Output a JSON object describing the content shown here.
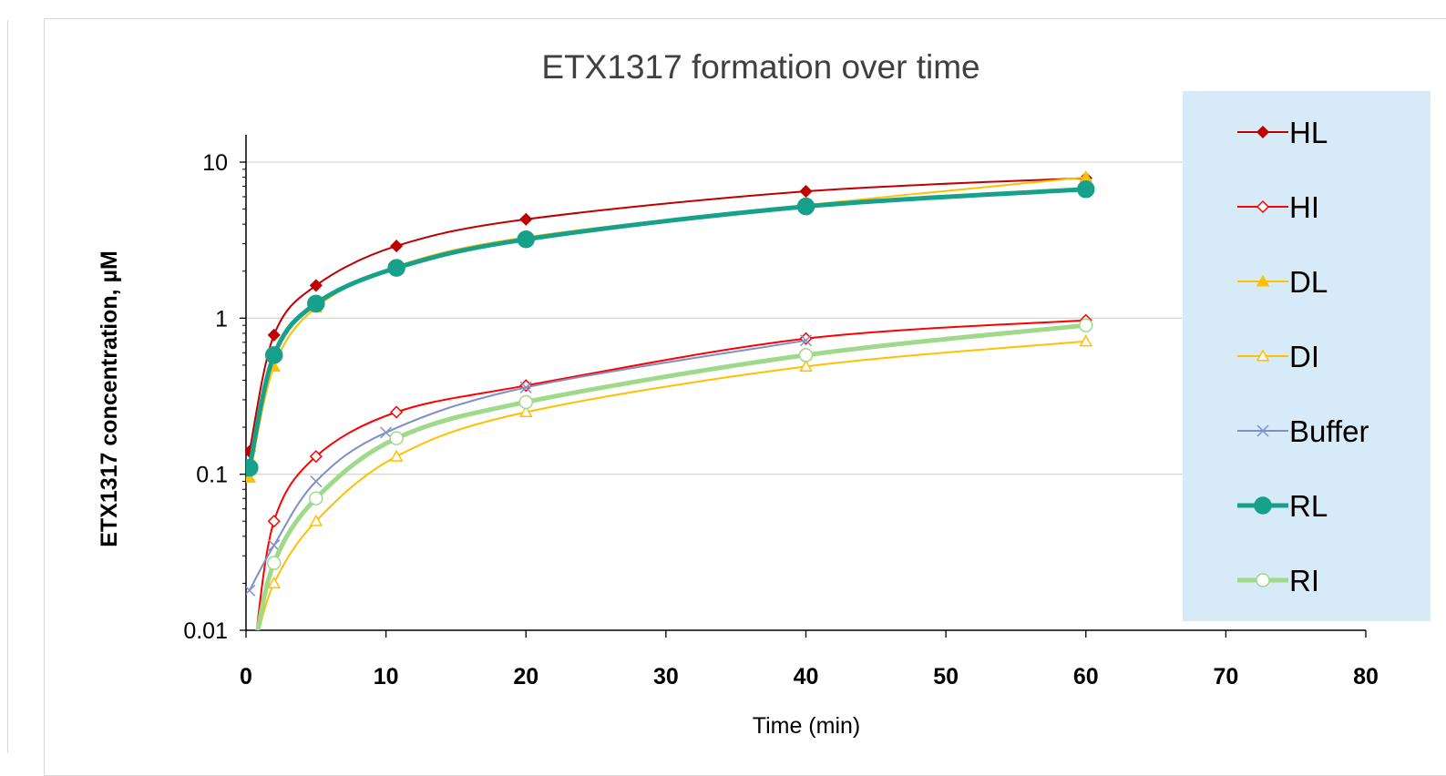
{
  "chart_data": {
    "type": "line",
    "title": "ETX1317 formation over time",
    "xlabel": "Time (min)",
    "ylabel": "ETX1317 concentration, µM",
    "xlim": [
      0,
      80
    ],
    "ylim": [
      0.01,
      10
    ],
    "yscale": "log",
    "xticks": [
      "0",
      "10",
      "20",
      "30",
      "40",
      "50",
      "60",
      "70",
      "80"
    ],
    "yticks": [
      "0.01",
      "0.1",
      "1",
      "10"
    ],
    "legend_position": "right",
    "series": [
      {
        "name": "HL",
        "color": "#c00000",
        "marker": "diamond-filled",
        "width": "thin",
        "x": [
          0.25,
          2,
          5,
          10.75,
          20,
          40,
          60
        ],
        "y": [
          0.14,
          0.78,
          1.62,
          2.9,
          4.3,
          6.5,
          7.9
        ]
      },
      {
        "name": "HI",
        "color": "#ff0000",
        "marker": "diamond-open",
        "width": "thin",
        "x": [
          2,
          5,
          10.75,
          20,
          40,
          60
        ],
        "y": [
          0.05,
          0.13,
          0.25,
          0.37,
          0.74,
          0.97
        ]
      },
      {
        "name": "DL",
        "color": "#ffc000",
        "marker": "triangle-filled",
        "width": "thin",
        "x": [
          0.25,
          2,
          5,
          10.75,
          20,
          40,
          60
        ],
        "y": [
          0.095,
          0.49,
          1.17,
          2.15,
          3.3,
          5.3,
          8.0
        ]
      },
      {
        "name": "DI",
        "color": "#ffc000",
        "marker": "triangle-open",
        "width": "thin",
        "x": [
          2,
          5,
          10.75,
          20,
          40,
          60
        ],
        "y": [
          0.02,
          0.05,
          0.13,
          0.25,
          0.49,
          0.71
        ]
      },
      {
        "name": "Buffer",
        "color": "#7f8fc9",
        "marker": "x",
        "width": "thin",
        "x": [
          0.25,
          2,
          5,
          10,
          20,
          40
        ],
        "y": [
          0.018,
          0.035,
          0.09,
          0.185,
          0.36,
          0.72
        ]
      },
      {
        "name": "RL",
        "color": "#17a08a",
        "marker": "circle-filled",
        "width": "thick",
        "x": [
          0.25,
          2,
          5,
          10.75,
          20,
          40,
          60
        ],
        "y": [
          0.11,
          0.58,
          1.24,
          2.1,
          3.2,
          5.2,
          6.7
        ]
      },
      {
        "name": "RI",
        "color": "#9fd98a",
        "marker": "circle-open",
        "width": "thick",
        "x": [
          2,
          5,
          10.75,
          20,
          40,
          60
        ],
        "y": [
          0.027,
          0.07,
          0.17,
          0.29,
          0.58,
          0.9
        ]
      }
    ]
  }
}
